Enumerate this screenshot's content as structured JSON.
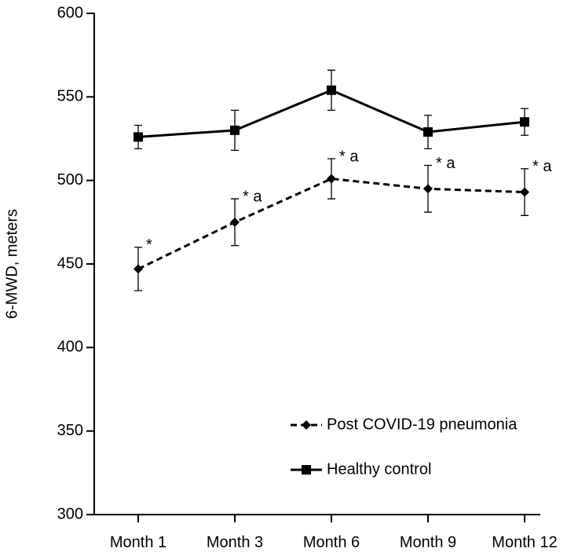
{
  "chart_data": {
    "type": "line",
    "y_label": "6-MWD, meters",
    "categories": [
      "Month 1",
      "Month 3",
      "Month 6",
      "Month 9",
      "Month 12"
    ],
    "ylim": [
      300,
      600
    ],
    "yticks": [
      300,
      350,
      400,
      450,
      500,
      550,
      600
    ],
    "series": [
      {
        "name": "Post COVID-19 pneumonia",
        "color": "#000000",
        "dashed": true,
        "marker": "diamond",
        "values": [
          447,
          475,
          501,
          495,
          493
        ],
        "errors": [
          13,
          14,
          12,
          14,
          14
        ],
        "annotations": [
          "*",
          "* a",
          "* a",
          "* a",
          "* a"
        ]
      },
      {
        "name": "Healthy control",
        "color": "#000000",
        "dashed": false,
        "marker": "square",
        "values": [
          526,
          530,
          554,
          529,
          535
        ],
        "errors": [
          7,
          12,
          12,
          10,
          8
        ]
      }
    ]
  }
}
